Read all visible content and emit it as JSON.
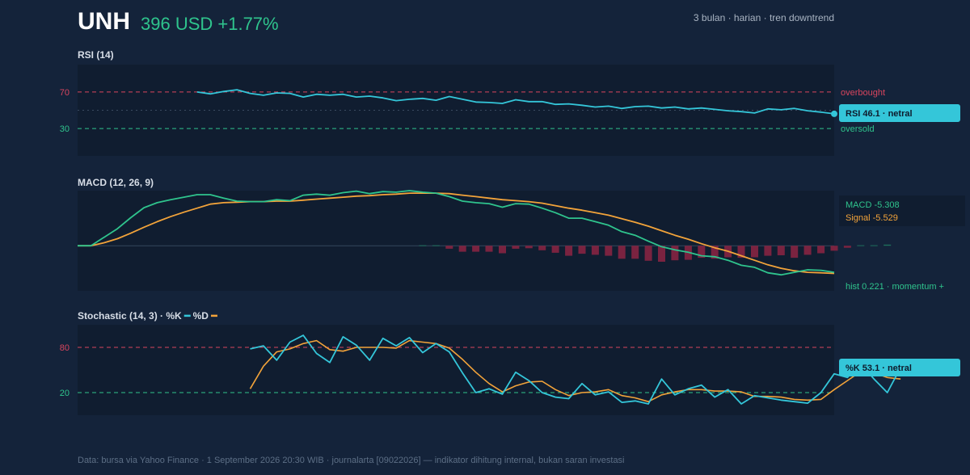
{
  "header": {
    "ticker": "UNH",
    "price": "396 USD +1.77%",
    "period": "3 bulan · harian · tren downtrend"
  },
  "panels": {
    "rsi": {
      "title": "RSI (14)",
      "overbought": "overbought",
      "oversold": "oversold",
      "badge": "RSI 46.1 · netral"
    },
    "macd": {
      "title": "MACD (12, 26, 9)",
      "macd_label": "MACD -5.308",
      "signal_label": "Signal -5.529",
      "hist_label": "hist 0.221 · momentum +"
    },
    "stoch": {
      "title_prefix": "Stochastic (14, 3) · ",
      "k_label": "%K",
      "d_label": "%D",
      "badge": "%K 53.1 · netral"
    }
  },
  "footer": "Data: bursa via Yahoo Finance · 1 September 2026 20:30 WIB · journalarta [09022026] — indikator dihitung internal, bukan saran investasi",
  "colors": {
    "background": "#14233a",
    "panel": "#101d30",
    "rsi": "#34c6d9",
    "macd": "#2fc48d",
    "signal": "#f2a33a",
    "hist_neg": "#7a2340",
    "hist_pos": "#1e6f5c",
    "overbought": "#d9455e",
    "oversold": "#2fc48d",
    "badge": "#34c6d9"
  },
  "chart_data": [
    {
      "type": "line",
      "title": "RSI (14)",
      "ylim": [
        0,
        100
      ],
      "yticks": [
        70,
        30
      ],
      "reference_lines": [
        70,
        50,
        30
      ],
      "series": [
        {
          "name": "RSI",
          "start_index": 9,
          "values": [
            70,
            68,
            70.5,
            72.5,
            68.5,
            66.5,
            69,
            68.5,
            64.5,
            67.5,
            66.5,
            67.5,
            64.5,
            65.5,
            63.5,
            60.5,
            62,
            63,
            61,
            65,
            62,
            59,
            58.5,
            57.5,
            61.5,
            59.5,
            59.5,
            56.5,
            57,
            55.5,
            53.5,
            54.5,
            52,
            54,
            54.5,
            52.5,
            53.5,
            51.5,
            52.5,
            51,
            49.5,
            48.5,
            47,
            51.5,
            50.5,
            52,
            49.5,
            48,
            46.1
          ]
        }
      ]
    },
    {
      "type": "line",
      "title": "MACD (12, 26, 9)",
      "ylim": [
        -9,
        11
      ],
      "series": [
        {
          "name": "MACD",
          "values": [
            0,
            0,
            1.7,
            3.4,
            5.6,
            7.6,
            8.6,
            9.2,
            9.7,
            10.2,
            10.2,
            9.5,
            8.9,
            8.8,
            8.8,
            9.2,
            9.0,
            10.1,
            10.3,
            10.1,
            10.6,
            10.9,
            10.4,
            10.8,
            10.7,
            11.0,
            10.7,
            10.5,
            9.8,
            8.9,
            8.6,
            8.4,
            7.7,
            8.4,
            8.3,
            7.5,
            6.6,
            5.5,
            5.5,
            4.8,
            4.1,
            2.8,
            2.1,
            0.9,
            -0.2,
            -0.8,
            -1.3,
            -2.0,
            -2.2,
            -2.9,
            -3.9,
            -4.3,
            -5.4,
            -5.8,
            -5.3,
            -4.8,
            -4.9,
            -5.308
          ]
        },
        {
          "name": "Signal",
          "values": [
            0,
            0,
            0.6,
            1.4,
            2.5,
            3.7,
            4.8,
            5.8,
            6.7,
            7.5,
            8.3,
            8.6,
            8.7,
            8.8,
            8.8,
            8.9,
            8.9,
            9.1,
            9.3,
            9.5,
            9.7,
            9.9,
            10.0,
            10.2,
            10.3,
            10.5,
            10.5,
            10.5,
            10.4,
            10.1,
            9.8,
            9.5,
            9.2,
            9.0,
            8.8,
            8.5,
            8.0,
            7.5,
            7.1,
            6.6,
            6.1,
            5.4,
            4.7,
            3.9,
            3.0,
            2.1,
            1.3,
            0.4,
            -0.4,
            -1.1,
            -2.0,
            -2.9,
            -3.8,
            -4.5,
            -5.0,
            -5.3,
            -5.4,
            -5.529
          ]
        },
        {
          "name": "Histogram",
          "start_index": 26,
          "values": [
            0.1,
            0.1,
            -0.6,
            -1.2,
            -1.2,
            -1.2,
            -1.5,
            -0.6,
            -0.5,
            -0.9,
            -1.4,
            -2.0,
            -1.6,
            -1.8,
            -2.0,
            -2.6,
            -2.6,
            -3.0,
            -3.2,
            -2.9,
            -2.8,
            -2.4,
            -2.6,
            -2.3,
            -2.4,
            -2.3,
            -2.0,
            -1.9,
            -2.4,
            -1.8,
            -1.5,
            -1.0,
            -0.4,
            0.1,
            0.1,
            0.221
          ]
        }
      ]
    },
    {
      "type": "line",
      "title": "Stochastic (14, 3)",
      "ylim": [
        0,
        100
      ],
      "yticks": [
        80,
        20
      ],
      "reference_lines": [
        80,
        20
      ],
      "series": [
        {
          "name": "%K",
          "start_index": 13,
          "values": [
            78,
            82,
            63,
            87,
            96,
            72,
            60,
            94,
            83,
            63,
            92,
            82,
            93,
            73,
            85,
            74,
            46,
            20,
            25,
            18,
            47,
            36,
            20,
            14,
            12,
            32,
            17,
            21,
            7,
            9,
            5,
            38,
            17,
            25,
            30,
            14,
            24,
            5,
            16,
            13,
            10,
            8,
            6,
            20,
            45,
            40,
            58,
            38,
            20,
            53.1
          ]
        },
        {
          "name": "%D",
          "start_index": 13,
          "values": [
            25,
            55,
            74,
            78,
            85,
            89,
            77,
            75,
            80,
            80,
            80,
            79,
            89,
            87,
            85,
            79,
            64,
            47,
            32,
            21,
            29,
            34,
            35,
            24,
            16,
            20,
            21,
            24,
            16,
            13,
            8,
            17,
            21,
            24,
            24,
            22,
            22,
            21,
            15,
            15,
            14,
            11,
            10,
            11,
            24,
            36,
            48,
            46,
            40,
            38
          ]
        }
      ]
    }
  ]
}
